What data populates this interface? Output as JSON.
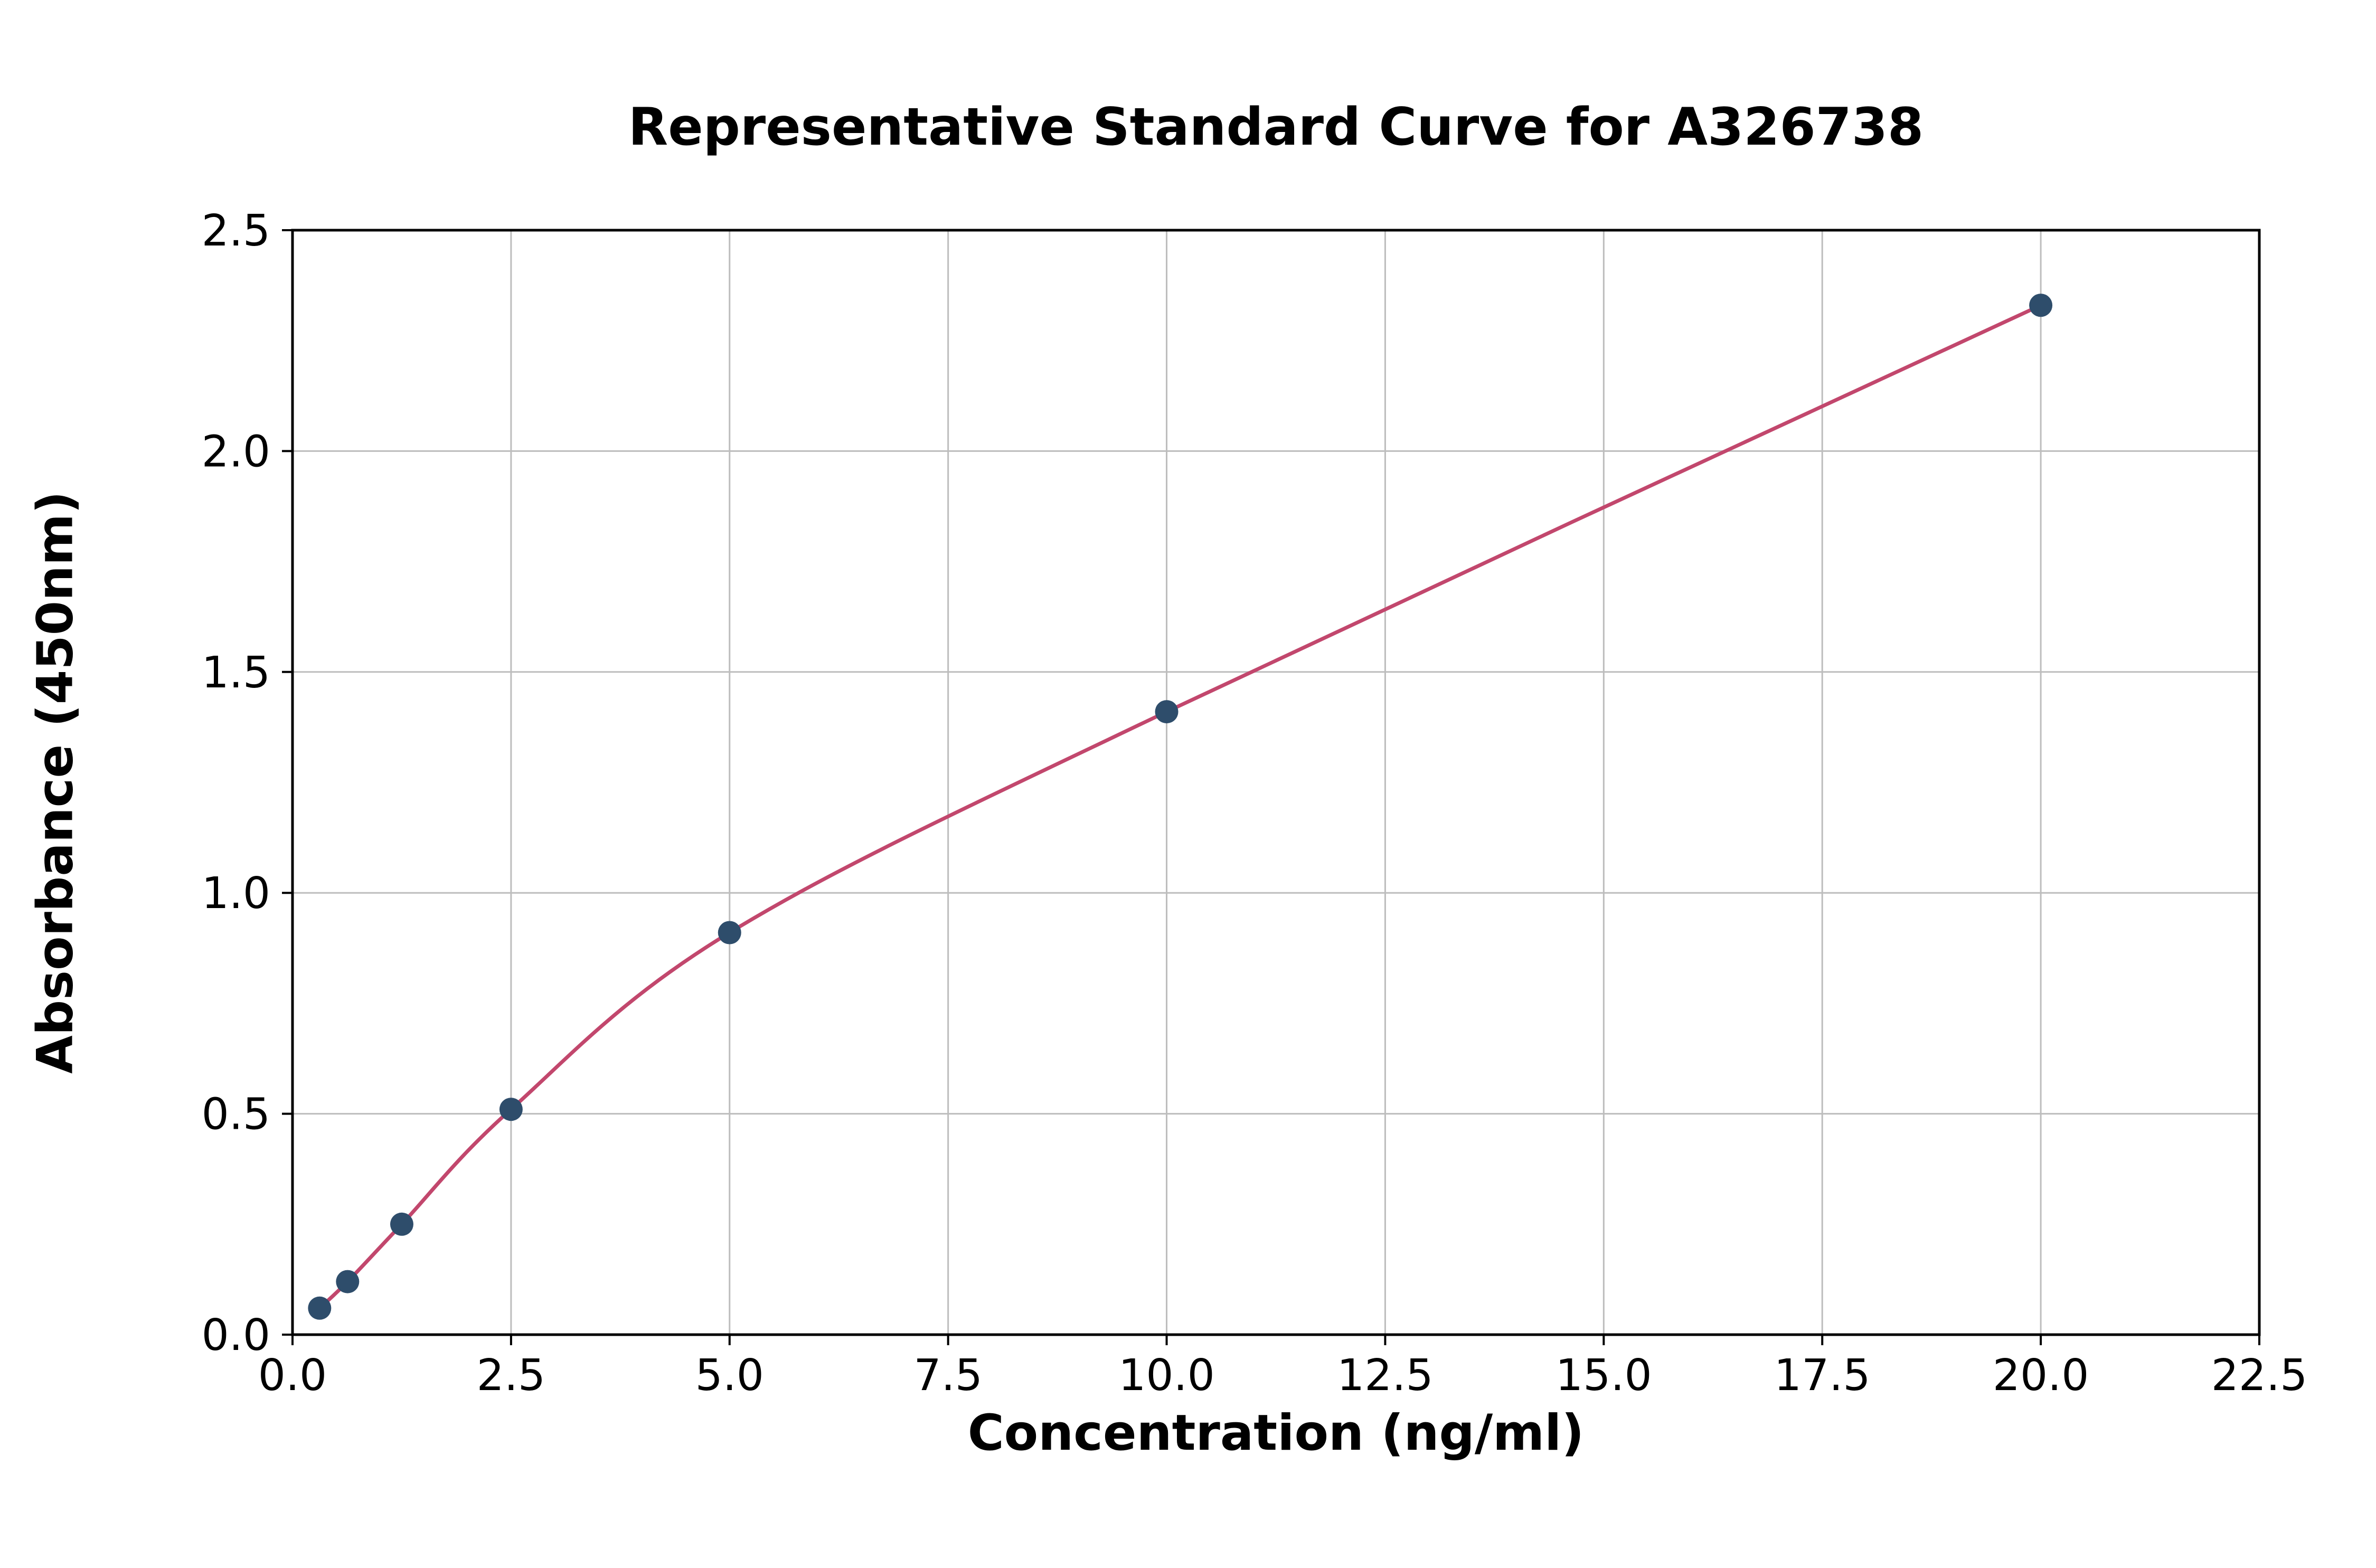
{
  "chart": {
    "title": "Representative Standard Curve for A326738",
    "xlabel": "Concentration (ng/ml)",
    "ylabel": "Absorbance (450nm)"
  },
  "chart_data": {
    "type": "scatter",
    "title": "Representative Standard Curve for A326738",
    "xlabel": "Concentration (ng/ml)",
    "ylabel": "Absorbance (450nm)",
    "xlim": [
      0,
      22.5
    ],
    "ylim": [
      0,
      2.5
    ],
    "x_ticks": [
      0.0,
      2.5,
      5.0,
      7.5,
      10.0,
      12.5,
      15.0,
      17.5,
      20.0,
      22.5
    ],
    "x_tick_labels": [
      "0.0",
      "2.5",
      "5.0",
      "7.5",
      "10.0",
      "12.5",
      "15.0",
      "17.5",
      "20.0",
      "22.5"
    ],
    "y_ticks": [
      0.0,
      0.5,
      1.0,
      1.5,
      2.0,
      2.5
    ],
    "y_tick_labels": [
      "0.0",
      "0.5",
      "1.0",
      "1.5",
      "2.0",
      "2.5"
    ],
    "grid": true,
    "legend": false,
    "series": [
      {
        "name": "standard-points",
        "type": "scatter",
        "x": [
          0.31,
          0.63,
          1.25,
          2.5,
          5.0,
          10.0,
          20.0
        ],
        "y": [
          0.06,
          0.12,
          0.25,
          0.51,
          0.91,
          1.41,
          2.33
        ],
        "color": "#2e4d6b"
      },
      {
        "name": "fitted-curve",
        "type": "line",
        "x": [
          0.31,
          0.63,
          1.25,
          2.5,
          5.0,
          10.0,
          20.0
        ],
        "y": [
          0.06,
          0.12,
          0.25,
          0.51,
          0.91,
          1.41,
          2.33
        ],
        "color": "#c2476d"
      }
    ],
    "colors": {
      "grid": "#bdbdbd",
      "spine": "#000000",
      "background": "#ffffff"
    }
  },
  "layout_note": ""
}
